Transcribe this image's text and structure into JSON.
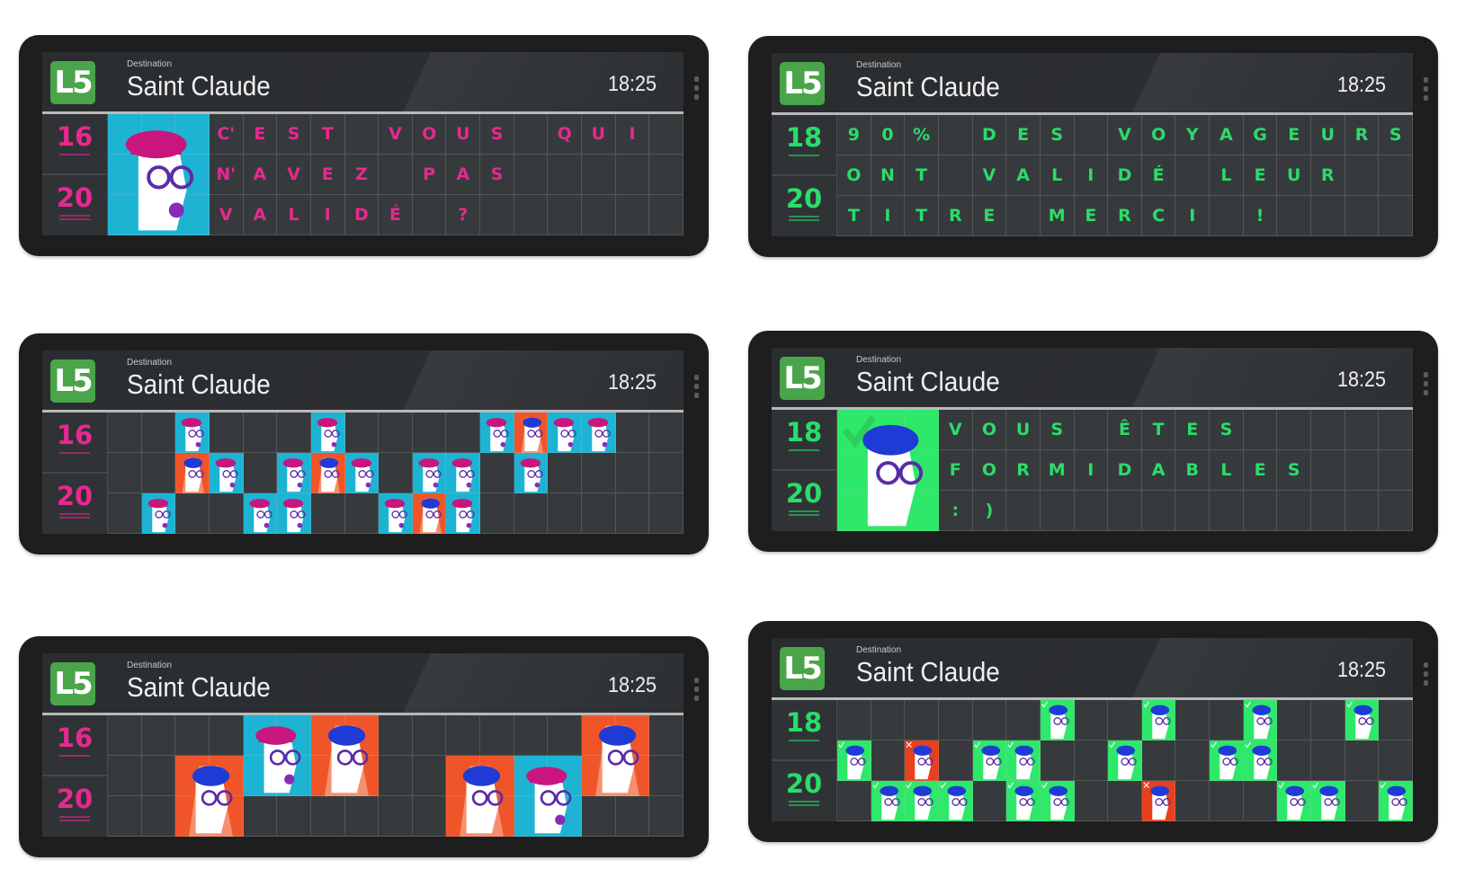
{
  "tile_colors": {
    "cyan": "#1db4d4",
    "orange": "#f0552a",
    "green": "#2ee86a",
    "red": "#e8401c"
  },
  "hat_colors": {
    "cyan": "#c8167e",
    "orange": "#1f3bd6",
    "green": "#1f3bd6",
    "red": "#1f3bd6"
  },
  "panels": [
    {
      "line": "L5",
      "destination_label": "Destination",
      "destination": "Saint Claude",
      "time": "18:25",
      "side_numbers": [
        "16",
        "20"
      ],
      "accent": "#e6298f",
      "rows": [
        [
          "#cyan-a",
          "#cyan-a",
          "#cyan-a",
          "C'",
          "E",
          "S",
          "T",
          "",
          "V",
          "O",
          "U",
          "S",
          "",
          "Q",
          "U",
          "I",
          ""
        ],
        [
          "#cyan-a",
          "#cyan-a",
          "#cyan-a",
          "N'",
          "A",
          "V",
          "E",
          "Z",
          "",
          "P",
          "A",
          "S",
          "",
          "",
          "",
          "",
          ""
        ],
        [
          "#cyan-a",
          "#cyan-a",
          "#cyan-a",
          "V",
          "A",
          "L",
          "I",
          "D",
          "É",
          "",
          "?",
          "",
          "",
          "",
          "",
          "",
          ""
        ]
      ]
    },
    {
      "line": "L5",
      "destination_label": "Destination",
      "destination": "Saint Claude",
      "time": "18:25",
      "side_numbers": [
        "18",
        "20"
      ],
      "accent": "#2bdc6a",
      "rows": [
        [
          "9",
          "0",
          "%",
          "",
          "D",
          "E",
          "S",
          "",
          "V",
          "O",
          "Y",
          "A",
          "G",
          "E",
          "U",
          "R",
          "S"
        ],
        [
          "O",
          "N",
          "T",
          "",
          "V",
          "A",
          "L",
          "I",
          "D",
          "É",
          "",
          "L",
          "E",
          "U",
          "R",
          "",
          ""
        ],
        [
          "T",
          "I",
          "T",
          "R",
          "E",
          "",
          "M",
          "E",
          "R",
          "C",
          "I",
          "",
          "!",
          "",
          "",
          "",
          ""
        ]
      ]
    },
    {
      "line": "L5",
      "destination_label": "Destination",
      "destination": "Saint Claude",
      "time": "18:25",
      "side_numbers": [
        "16",
        "20"
      ],
      "accent": "#e6298f",
      "rows": [
        [
          "",
          "",
          "#cyan",
          "",
          "",
          "",
          "#cyan",
          "",
          "",
          "",
          "",
          "#cyan",
          "#orange",
          "#cyan",
          "#cyan",
          "",
          ""
        ],
        [
          "",
          "",
          "#orange",
          "#cyan",
          "",
          "#cyan",
          "#orange",
          "#cyan",
          "",
          "#cyan",
          "#cyan",
          "",
          "#cyan",
          "",
          "",
          "",
          ""
        ],
        [
          "",
          "#cyan",
          "",
          "",
          "#cyan",
          "#cyan",
          "",
          "",
          "#cyan",
          "#orange",
          "#cyan",
          "",
          "",
          "",
          "",
          "",
          ""
        ]
      ]
    },
    {
      "line": "L5",
      "destination_label": "Destination",
      "destination": "Saint Claude",
      "time": "18:25",
      "side_numbers": [
        "18",
        "20"
      ],
      "accent": "#2bdc6a",
      "rows": [
        [
          "#green-a",
          "#green-a",
          "#green-a",
          "V",
          "O",
          "U",
          "S",
          "",
          "Ê",
          "T",
          "E",
          "S",
          "",
          "",
          "",
          "",
          ""
        ],
        [
          "#green-a",
          "#green-a",
          "#green-a",
          "F",
          "O",
          "R",
          "M",
          "I",
          "D",
          "A",
          "B",
          "L",
          "E",
          "S",
          "",
          "",
          ""
        ],
        [
          "#green-a",
          "#green-a",
          "#green-a",
          ":",
          ")",
          "",
          "",
          "",
          "",
          "",
          "",
          "",
          "",
          "",
          "",
          "",
          ""
        ]
      ]
    },
    {
      "line": "L5",
      "destination_label": "Destination",
      "destination": "Saint Claude",
      "time": "18:25",
      "side_numbers": [
        "16",
        "20"
      ],
      "accent": "#e6298f",
      "rows": [
        [
          "",
          "",
          "",
          "",
          "#cyan-b",
          "#cyan-b",
          "#orange-c",
          "#orange-c",
          "",
          "",
          "",
          "",
          "",
          "",
          "#orange-f",
          "#orange-f",
          ""
        ],
        [
          "",
          "",
          "#orange-a",
          "#orange-a",
          "#cyan-b",
          "#cyan-b",
          "#orange-c",
          "#orange-c",
          "",
          "",
          "#orange-d",
          "#orange-d",
          "#cyan-e",
          "#cyan-e",
          "#orange-f",
          "#orange-f",
          ""
        ],
        [
          "",
          "",
          "#orange-a",
          "#orange-a",
          "",
          "",
          "",
          "",
          "",
          "",
          "#orange-d",
          "#orange-d",
          "#cyan-e",
          "#cyan-e",
          "",
          "",
          ""
        ]
      ]
    },
    {
      "line": "L5",
      "destination_label": "Destination",
      "destination": "Saint Claude",
      "time": "18:25",
      "side_numbers": [
        "18",
        "20"
      ],
      "accent": "#2bdc6a",
      "rows": [
        [
          "",
          "",
          "",
          "",
          "",
          "",
          "#green",
          "",
          "",
          "#green",
          "",
          "",
          "#green",
          "",
          "",
          "#green",
          ""
        ],
        [
          "#green",
          "",
          "#red",
          "",
          "#green",
          "#green",
          "",
          "",
          "#green",
          "",
          "",
          "#green",
          "#green",
          "",
          "",
          "",
          ""
        ],
        [
          "",
          "#green",
          "#green",
          "#green",
          "",
          "#green",
          "#green",
          "",
          "",
          "#red",
          "",
          "",
          "",
          "#green",
          "#green",
          "",
          "#green"
        ]
      ]
    }
  ]
}
